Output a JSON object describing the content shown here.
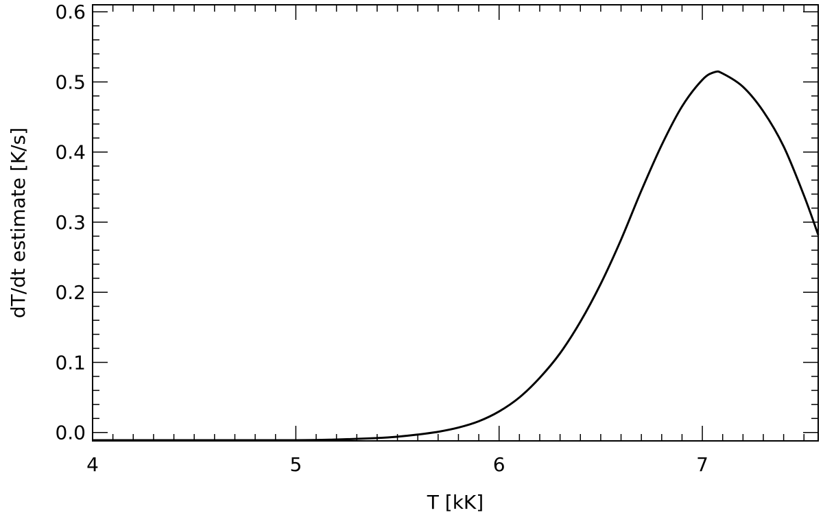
{
  "chart_data": {
    "type": "line",
    "title": "",
    "xlabel": "T [kK]",
    "ylabel": "dT/dt estimate [K/s]",
    "xlim": [
      4.0,
      7.57
    ],
    "ylim": [
      -0.012,
      0.61
    ],
    "x_ticks": [
      4,
      5,
      6,
      7
    ],
    "x_tick_labels": [
      "4",
      "5",
      "6",
      "7"
    ],
    "y_ticks": [
      0.0,
      0.1,
      0.2,
      0.3,
      0.4,
      0.5,
      0.6
    ],
    "y_tick_labels": [
      "0.0",
      "0.1",
      "0.2",
      "0.3",
      "0.4",
      "0.5",
      "0.6"
    ],
    "grid": false,
    "line_color": "#000000",
    "series": [
      {
        "x": [
          4.0,
          4.5,
          5.0,
          5.2,
          5.4,
          5.5,
          5.6,
          5.7,
          5.8,
          5.9,
          6.0,
          6.1,
          6.2,
          6.3,
          6.4,
          6.5,
          6.6,
          6.7,
          6.8,
          6.9,
          7.0,
          7.06,
          7.1,
          7.2,
          7.3,
          7.4,
          7.5,
          7.57
        ],
        "y": [
          -0.011,
          -0.011,
          -0.011,
          -0.01,
          -0.008,
          -0.006,
          -0.003,
          0.001,
          0.007,
          0.016,
          0.03,
          0.05,
          0.078,
          0.113,
          0.158,
          0.212,
          0.275,
          0.345,
          0.41,
          0.465,
          0.503,
          0.514,
          0.512,
          0.493,
          0.458,
          0.408,
          0.338,
          0.282
        ]
      }
    ]
  }
}
